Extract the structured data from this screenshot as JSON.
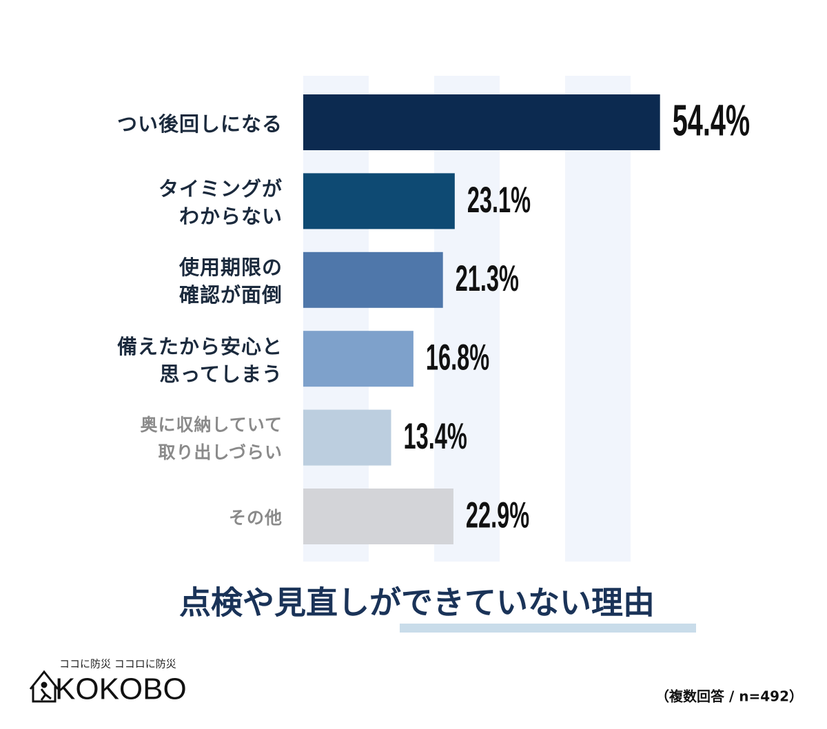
{
  "chart_data": {
    "type": "bar",
    "orientation": "horizontal",
    "title": "点検や見直しができていない理由",
    "categories": [
      "つい後回しになる",
      "タイミングが\nわからない",
      "使用期限の\n確認が面倒",
      "備えたから安心と\n思ってしまう",
      "奥に収納していて\n取り出しづらい",
      "その他"
    ],
    "values": [
      54.4,
      23.1,
      21.3,
      16.8,
      13.4,
      22.9
    ],
    "value_labels": [
      "54.4%",
      "23.1%",
      "21.3%",
      "16.8%",
      "13.4%",
      "22.9%"
    ],
    "colors": [
      "#0c2a50",
      "#0e4a73",
      "#4f77aa",
      "#7ea1cb",
      "#bccedf",
      "#d3d4d8"
    ],
    "label_colors": [
      "#1b2a3d",
      "#1b2a3d",
      "#1b2a3d",
      "#1b2a3d",
      "#8a8a8a",
      "#8a8a8a"
    ],
    "xlim": [
      0,
      60
    ],
    "note": "（複数回答 / n=492）"
  },
  "logo": {
    "tagline": "ココに防災 ココロに防災",
    "name": "KOKOBO"
  }
}
